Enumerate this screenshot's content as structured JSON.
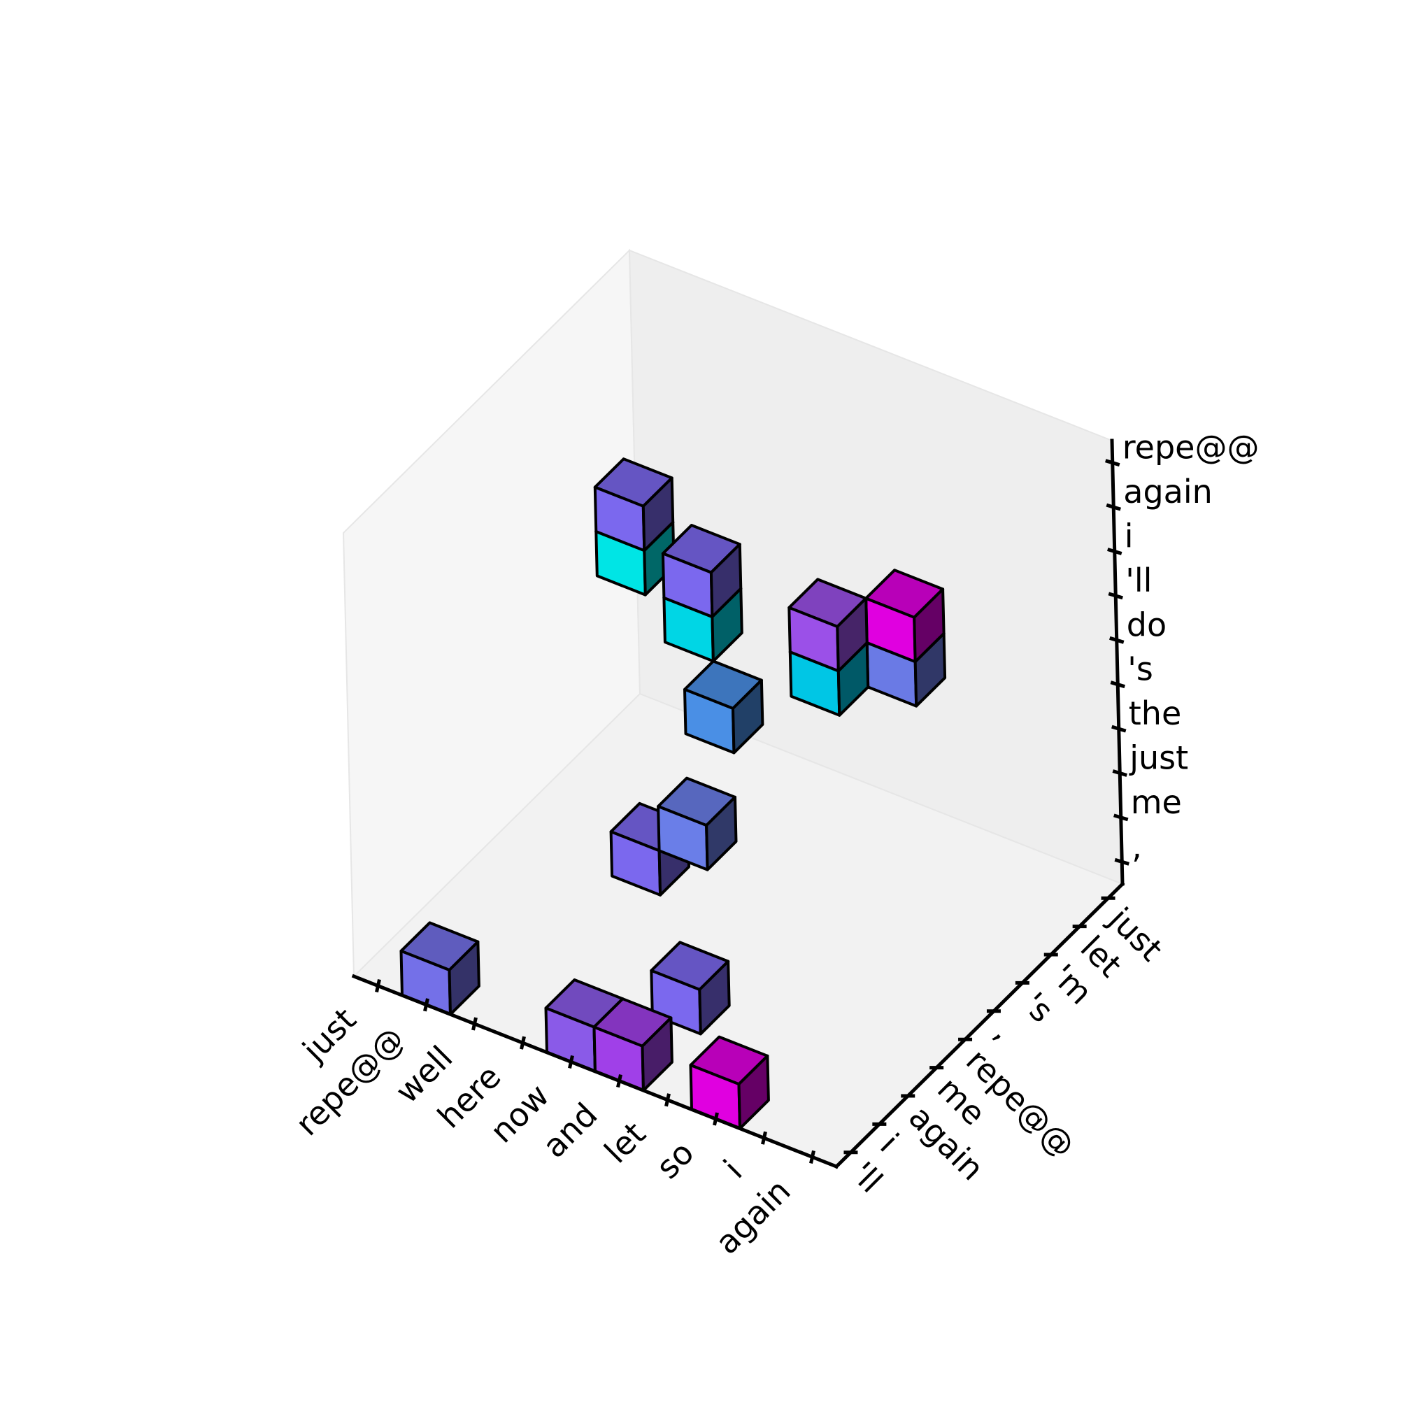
{
  "chart_data": {
    "type": "voxels-3d",
    "title": "",
    "x_axis": {
      "tick_labels": [
        "just",
        "repe@@",
        "well",
        "here",
        "now",
        "and",
        "let",
        "so",
        "i",
        "again"
      ]
    },
    "y_axis": {
      "tick_labels": [
        "'ll",
        "i",
        "again",
        "me",
        "repe@@",
        ",",
        "'s",
        "'m",
        "let",
        "just"
      ]
    },
    "z_axis": {
      "tick_labels": [
        ",",
        "me",
        "just",
        "the",
        "'s",
        "do",
        "'ll",
        "i",
        "again",
        "repe@@"
      ]
    },
    "voxels": [
      {
        "x": "repe@@",
        "y": "'m",
        "z": "do",
        "color": "#00e5e5"
      },
      {
        "x": "repe@@",
        "y": "'m",
        "z": "'ll",
        "color": "#7b68ee"
      },
      {
        "x": "here",
        "y": "'s",
        "z": "do",
        "color": "#00d6e5"
      },
      {
        "x": "here",
        "y": "'s",
        "z": "'ll",
        "color": "#7b68ee"
      },
      {
        "x": "now",
        "y": ",",
        "z": "'s",
        "color": "#4a8fe5"
      },
      {
        "x": "and",
        "y": "'m",
        "z": "'s",
        "color": "#00c6e5"
      },
      {
        "x": "and",
        "y": "'m",
        "z": "do",
        "color": "#9b50e8"
      },
      {
        "x": "let",
        "y": "let",
        "z": "'s",
        "color": "#6a7ae5"
      },
      {
        "x": "let",
        "y": "let",
        "z": "do",
        "color": "#e000e0"
      },
      {
        "x": "here",
        "y": "repe@@",
        "z": "me",
        "color": "#7b68ee"
      },
      {
        "x": "now",
        "y": "repe@@",
        "z": "just",
        "color": "#6a7ee8"
      },
      {
        "x": "and",
        "y": "again",
        "z": ",",
        "color": "#7b68ee"
      },
      {
        "x": "repe@@",
        "y": "'ll",
        "z": ",",
        "color": "#7470e8"
      },
      {
        "x": "now",
        "y": "'ll",
        "z": ",",
        "color": "#8a5ae8"
      },
      {
        "x": "and",
        "y": "'ll",
        "z": ",",
        "color": "#a040e8"
      },
      {
        "x": "so",
        "y": "'ll",
        "z": ",",
        "color": "#e000e0"
      }
    ]
  }
}
